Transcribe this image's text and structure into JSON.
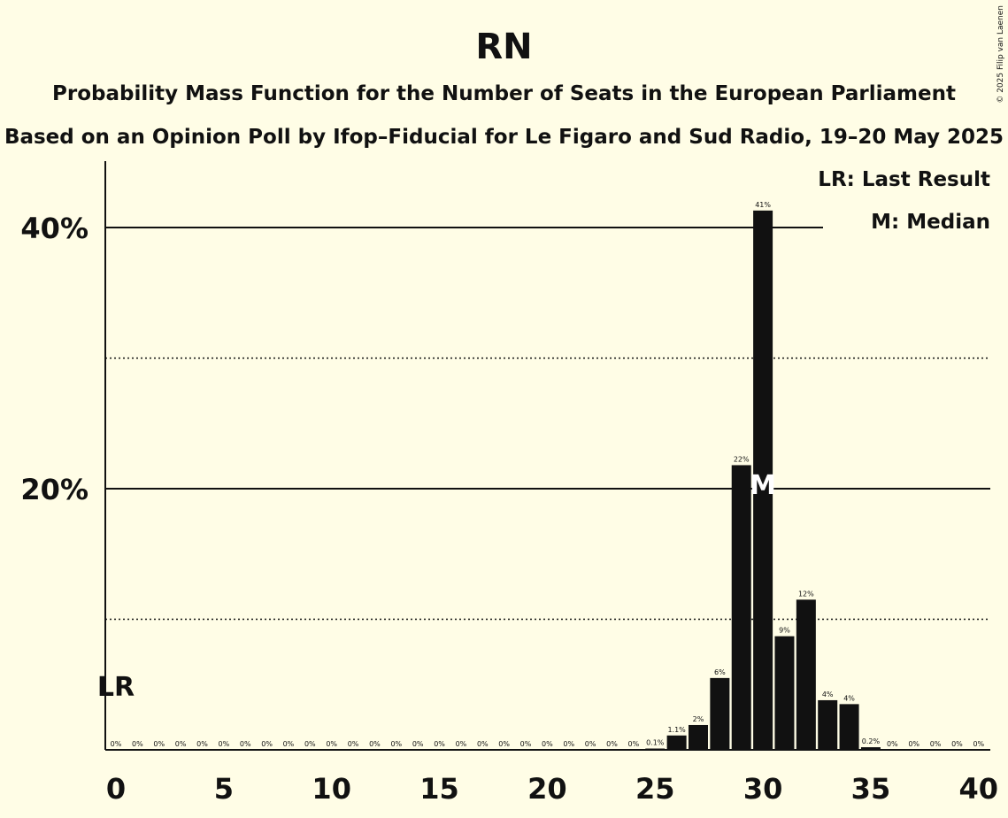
{
  "chart_data": {
    "type": "bar",
    "title": "RN",
    "subtitle": "Probability Mass Function for the Number of Seats in the European Parliament",
    "subtitle2": "Based on an Opinion Poll by Ifop–Fiducial for Le Figaro and Sud Radio, 19–20 May 2025",
    "copyright": "© 2025 Filip van Laenen",
    "legend": [
      "LR: Last Result",
      "M: Median"
    ],
    "legend_position": "top-right",
    "xlabel": "",
    "ylabel": "",
    "xlim": [
      0,
      40
    ],
    "ylim": [
      0,
      45
    ],
    "x_ticks": [
      "0",
      "5",
      "10",
      "15",
      "20",
      "25",
      "30",
      "35",
      "40"
    ],
    "y_ticks": [
      "20%",
      "40%"
    ],
    "grid": "solid at 20% and 40%, dotted at 10% and 30%",
    "last_result_marker": {
      "x": 0,
      "label": "LR"
    },
    "median_marker": {
      "x": 30,
      "label": "M"
    },
    "x": [
      0,
      1,
      2,
      3,
      4,
      5,
      6,
      7,
      8,
      9,
      10,
      11,
      12,
      13,
      14,
      15,
      16,
      17,
      18,
      19,
      20,
      21,
      22,
      23,
      24,
      25,
      26,
      27,
      28,
      29,
      30,
      31,
      32,
      33,
      34,
      35,
      36,
      37,
      38,
      39,
      40
    ],
    "values": [
      0,
      0,
      0,
      0,
      0,
      0,
      0,
      0,
      0,
      0,
      0,
      0,
      0,
      0,
      0,
      0,
      0,
      0,
      0,
      0,
      0,
      0,
      0,
      0,
      0,
      0.1,
      1.1,
      1.9,
      5.5,
      21.8,
      41.3,
      8.7,
      11.5,
      3.8,
      3.5,
      0.2,
      0,
      0,
      0,
      0,
      0
    ],
    "data_labels": [
      "0%",
      "0%",
      "0%",
      "0%",
      "0%",
      "0%",
      "0%",
      "0%",
      "0%",
      "0%",
      "0%",
      "0%",
      "0%",
      "0%",
      "0%",
      "0%",
      "0%",
      "0%",
      "0%",
      "0%",
      "0%",
      "0%",
      "0%",
      "0%",
      "0%",
      "0.1%",
      "1.1%",
      "2%",
      "6%",
      "22%",
      "41%",
      "9%",
      "12%",
      "4%",
      "4%",
      "0.2%",
      "0%",
      "0%",
      "0%",
      "0%",
      "0%"
    ]
  }
}
